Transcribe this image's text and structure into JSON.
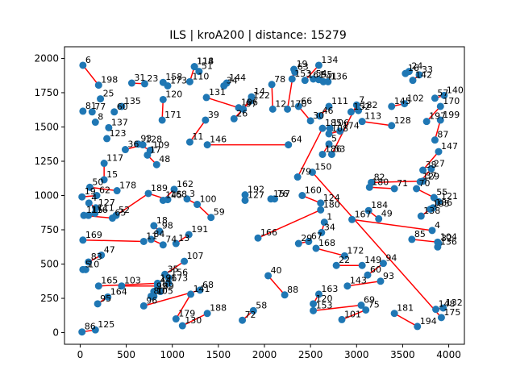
{
  "chart_data": {
    "type": "scatter",
    "title": "ILS | kroA200 | distance: 15279",
    "xlabel": "",
    "ylabel": "",
    "xlim": [
      -170,
      4170
    ],
    "ylim": [
      -85,
      2085
    ],
    "xticks": [
      0,
      500,
      1000,
      1500,
      2000,
      2500,
      3000,
      3500,
      4000
    ],
    "yticks": [
      0,
      250,
      500,
      750,
      1000,
      1250,
      1500,
      1750,
      2000
    ],
    "grid": false,
    "colors": {
      "points": "#1f77b4",
      "tour": "#ff0000"
    },
    "points": [
      {
        "label": "6",
        "x": 30,
        "y": 1950
      },
      {
        "label": "198",
        "x": 200,
        "y": 1805
      },
      {
        "label": "31",
        "x": 560,
        "y": 1820
      },
      {
        "label": "23",
        "x": 700,
        "y": 1815
      },
      {
        "label": "158",
        "x": 900,
        "y": 1825
      },
      {
        "label": "173",
        "x": 950,
        "y": 1800
      },
      {
        "label": "120",
        "x": 900,
        "y": 1700
      },
      {
        "label": "25",
        "x": 220,
        "y": 1705
      },
      {
        "label": "135",
        "x": 450,
        "y": 1650
      },
      {
        "label": "60",
        "x": 370,
        "y": 1610
      },
      {
        "label": "81",
        "x": 30,
        "y": 1615
      },
      {
        "label": "77",
        "x": 130,
        "y": 1610
      },
      {
        "label": "8",
        "x": 165,
        "y": 1535
      },
      {
        "label": "137",
        "x": 310,
        "y": 1495
      },
      {
        "label": "123",
        "x": 290,
        "y": 1415
      },
      {
        "label": "171",
        "x": 890,
        "y": 1550
      },
      {
        "label": "117",
        "x": 260,
        "y": 1235
      },
      {
        "label": "15",
        "x": 260,
        "y": 1115
      },
      {
        "label": "36",
        "x": 490,
        "y": 1335
      },
      {
        "label": "128",
        "x": 680,
        "y": 1370
      },
      {
        "label": "93",
        "x": 630,
        "y": 1375
      },
      {
        "label": "109",
        "x": 760,
        "y": 1330
      },
      {
        "label": "17",
        "x": 730,
        "y": 1295
      },
      {
        "label": "48",
        "x": 830,
        "y": 1225
      },
      {
        "label": "50",
        "x": 105,
        "y": 1060
      },
      {
        "label": "178",
        "x": 400,
        "y": 1035
      },
      {
        "label": "189",
        "x": 740,
        "y": 1015
      },
      {
        "label": "62",
        "x": 180,
        "y": 1000
      },
      {
        "label": "19",
        "x": 20,
        "y": 990
      },
      {
        "label": "4",
        "x": 95,
        "y": 945
      },
      {
        "label": "127",
        "x": 170,
        "y": 910
      },
      {
        "label": "111",
        "x": 160,
        "y": 870
      },
      {
        "label": "116",
        "x": 90,
        "y": 855
      },
      {
        "label": "115",
        "x": 40,
        "y": 855
      },
      {
        "label": "52",
        "x": 390,
        "y": 855
      },
      {
        "label": "65",
        "x": 350,
        "y": 835
      },
      {
        "label": "162",
        "x": 1020,
        "y": 1045
      },
      {
        "label": "145",
        "x": 900,
        "y": 965
      },
      {
        "label": "168",
        "x": 950,
        "y": 970
      },
      {
        "label": "3",
        "x": 1160,
        "y": 975
      },
      {
        "label": "100",
        "x": 1270,
        "y": 935
      },
      {
        "label": "59",
        "x": 1420,
        "y": 840
      },
      {
        "label": "18",
        "x": 800,
        "y": 780
      },
      {
        "label": "98",
        "x": 860,
        "y": 740
      },
      {
        "label": "169",
        "x": 30,
        "y": 675
      },
      {
        "label": "11",
        "x": 690,
        "y": 665
      },
      {
        "label": "84",
        "x": 770,
        "y": 680
      },
      {
        "label": "74",
        "x": 900,
        "y": 640
      },
      {
        "label": "191",
        "x": 1180,
        "y": 715
      },
      {
        "label": "13",
        "x": 1040,
        "y": 650
      },
      {
        "label": "47",
        "x": 230,
        "y": 565
      },
      {
        "label": "83",
        "x": 90,
        "y": 515
      },
      {
        "label": "10",
        "x": 60,
        "y": 460
      },
      {
        "label": "5",
        "x": 30,
        "y": 460
      },
      {
        "label": "107",
        "x": 1130,
        "y": 520
      },
      {
        "label": "35",
        "x": 920,
        "y": 425
      },
      {
        "label": "156",
        "x": 960,
        "y": 400
      },
      {
        "label": "173b",
        "display": "173",
        "x": 960,
        "y": 360
      },
      {
        "label": "196",
        "x": 840,
        "y": 360
      },
      {
        "label": "165",
        "x": 200,
        "y": 340
      },
      {
        "label": "103",
        "x": 450,
        "y": 340
      },
      {
        "label": "44",
        "x": 840,
        "y": 340
      },
      {
        "label": "99",
        "x": 800,
        "y": 300
      },
      {
        "label": "89",
        "x": 870,
        "y": 300
      },
      {
        "label": "80",
        "x": 770,
        "y": 265
      },
      {
        "label": "105",
        "x": 800,
        "y": 265
      },
      {
        "label": "164",
        "x": 300,
        "y": 260
      },
      {
        "label": "95",
        "x": 190,
        "y": 210
      },
      {
        "label": "96",
        "x": 690,
        "y": 195
      },
      {
        "label": "68",
        "x": 1300,
        "y": 310
      },
      {
        "label": "141",
        "x": 1200,
        "y": 280
      },
      {
        "label": "179",
        "x": 1040,
        "y": 100
      },
      {
        "label": "130",
        "x": 1110,
        "y": 50
      },
      {
        "label": "188",
        "x": 1380,
        "y": 140
      },
      {
        "label": "58",
        "x": 1880,
        "y": 160
      },
      {
        "label": "72",
        "x": 1760,
        "y": 90
      },
      {
        "label": "86",
        "x": 20,
        "y": 5
      },
      {
        "label": "125",
        "x": 165,
        "y": 20
      },
      {
        "label": "114",
        "x": 1240,
        "y": 1940
      },
      {
        "label": "118",
        "x": 1240,
        "y": 1940
      },
      {
        "label": "51",
        "x": 1290,
        "y": 1905
      },
      {
        "label": "110",
        "x": 1190,
        "y": 1830
      },
      {
        "label": "34",
        "x": 1560,
        "y": 1800
      },
      {
        "label": "144",
        "x": 1590,
        "y": 1820
      },
      {
        "label": "131",
        "x": 1370,
        "y": 1715
      },
      {
        "label": "196b",
        "display": "196",
        "x": 1720,
        "y": 1640
      },
      {
        "label": "97",
        "x": 1770,
        "y": 1630
      },
      {
        "label": "14",
        "x": 1860,
        "y": 1720
      },
      {
        "label": "122",
        "x": 1850,
        "y": 1690
      },
      {
        "label": "26",
        "x": 1670,
        "y": 1560
      },
      {
        "label": "39",
        "x": 1360,
        "y": 1550
      },
      {
        "label": "78",
        "x": 2080,
        "y": 1810
      },
      {
        "label": "12",
        "x": 2090,
        "y": 1630
      },
      {
        "label": "170",
        "x": 2250,
        "y": 1630
      },
      {
        "label": "19b",
        "display": "19",
        "x": 2320,
        "y": 1920
      },
      {
        "label": "63",
        "x": 2330,
        "y": 1900
      },
      {
        "label": "153",
        "x": 2300,
        "y": 1850
      },
      {
        "label": "161",
        "x": 2440,
        "y": 1840
      },
      {
        "label": "134",
        "x": 2590,
        "y": 1950
      },
      {
        "label": "54",
        "x": 2530,
        "y": 1850
      },
      {
        "label": "55",
        "x": 2590,
        "y": 1845
      },
      {
        "label": "41",
        "x": 2640,
        "y": 1830
      },
      {
        "label": "136",
        "x": 2690,
        "y": 1830
      },
      {
        "label": "66",
        "x": 2370,
        "y": 1650
      },
      {
        "label": "30",
        "x": 2500,
        "y": 1545
      },
      {
        "label": "46",
        "x": 2600,
        "y": 1580
      },
      {
        "label": "111b",
        "display": "111",
        "x": 2700,
        "y": 1650
      },
      {
        "label": "11b",
        "display": "11",
        "x": 1190,
        "y": 1390
      },
      {
        "label": "146",
        "x": 1380,
        "y": 1370
      },
      {
        "label": "64",
        "x": 2260,
        "y": 1370
      },
      {
        "label": "150",
        "x": 2520,
        "y": 1170
      },
      {
        "label": "79",
        "x": 2360,
        "y": 1135
      },
      {
        "label": "185",
        "x": 2630,
        "y": 1490
      },
      {
        "label": "106",
        "x": 2710,
        "y": 1490
      },
      {
        "label": "108",
        "x": 2700,
        "y": 1450
      },
      {
        "label": "174",
        "x": 2820,
        "y": 1470
      },
      {
        "label": "5b",
        "display": "5",
        "x": 2700,
        "y": 1375
      },
      {
        "label": "186",
        "x": 2630,
        "y": 1300
      },
      {
        "label": "53",
        "x": 2730,
        "y": 1300
      },
      {
        "label": "7",
        "x": 3000,
        "y": 1660
      },
      {
        "label": "182",
        "x": 3020,
        "y": 1620
      },
      {
        "label": "152",
        "x": 2940,
        "y": 1610
      },
      {
        "label": "113",
        "x": 3060,
        "y": 1540
      },
      {
        "label": "16",
        "x": 3530,
        "y": 1890
      },
      {
        "label": "24",
        "x": 3570,
        "y": 1905
      },
      {
        "label": "33",
        "x": 3680,
        "y": 1880
      },
      {
        "label": "142",
        "x": 3610,
        "y": 1840
      },
      {
        "label": "145b",
        "display": "145",
        "x": 3380,
        "y": 1650
      },
      {
        "label": "102",
        "x": 3520,
        "y": 1670
      },
      {
        "label": "57",
        "x": 3850,
        "y": 1710
      },
      {
        "label": "140",
        "x": 3950,
        "y": 1730
      },
      {
        "label": "170b",
        "display": "170",
        "x": 3910,
        "y": 1650
      },
      {
        "label": "128b",
        "display": "128",
        "x": 3380,
        "y": 1510
      },
      {
        "label": "197",
        "x": 3760,
        "y": 1540
      },
      {
        "label": "199",
        "x": 3910,
        "y": 1550
      },
      {
        "label": "87",
        "x": 3850,
        "y": 1405
      },
      {
        "label": "147",
        "x": 3890,
        "y": 1320
      },
      {
        "label": "38",
        "x": 3720,
        "y": 1185
      },
      {
        "label": "27",
        "x": 3810,
        "y": 1195
      },
      {
        "label": "129",
        "x": 3690,
        "y": 1100
      },
      {
        "label": "37",
        "x": 3720,
        "y": 1105
      },
      {
        "label": "82",
        "x": 3160,
        "y": 1095
      },
      {
        "label": "180b",
        "display": "180",
        "x": 3140,
        "y": 1060
      },
      {
        "label": "71",
        "x": 3410,
        "y": 1050
      },
      {
        "label": "70",
        "x": 3650,
        "y": 1050
      },
      {
        "label": "55b",
        "display": "55",
        "x": 3840,
        "y": 985
      },
      {
        "label": "121",
        "x": 3890,
        "y": 955
      },
      {
        "label": "186b",
        "display": "186",
        "x": 3830,
        "y": 910
      },
      {
        "label": "195",
        "x": 3800,
        "y": 900
      },
      {
        "label": "138",
        "x": 3700,
        "y": 850
      },
      {
        "label": "49",
        "x": 3240,
        "y": 830
      },
      {
        "label": "184",
        "x": 3130,
        "y": 890
      },
      {
        "label": "167",
        "x": 2950,
        "y": 825
      },
      {
        "label": "4b",
        "display": "4",
        "x": 3820,
        "y": 745
      },
      {
        "label": "85",
        "x": 3600,
        "y": 680
      },
      {
        "label": "104",
        "x": 3880,
        "y": 660
      },
      {
        "label": "32",
        "x": 3890,
        "y": 650
      },
      {
        "label": "136b",
        "display": "136",
        "x": 3880,
        "y": 625
      },
      {
        "label": "192",
        "x": 1790,
        "y": 1005
      },
      {
        "label": "127b",
        "display": "127",
        "x": 1790,
        "y": 965
      },
      {
        "label": "157",
        "x": 2070,
        "y": 975
      },
      {
        "label": "76",
        "x": 2110,
        "y": 975
      },
      {
        "label": "160",
        "x": 2410,
        "y": 1000
      },
      {
        "label": "124",
        "x": 2610,
        "y": 945
      },
      {
        "label": "180",
        "x": 2610,
        "y": 895
      },
      {
        "label": "166",
        "x": 1930,
        "y": 690
      },
      {
        "label": "1",
        "x": 2650,
        "y": 805
      },
      {
        "label": "34b",
        "display": "34",
        "x": 2620,
        "y": 730
      },
      {
        "label": "29",
        "x": 2370,
        "y": 650
      },
      {
        "label": "67",
        "x": 2480,
        "y": 665
      },
      {
        "label": "168b",
        "display": "168",
        "x": 2560,
        "y": 615
      },
      {
        "label": "172",
        "x": 2870,
        "y": 560
      },
      {
        "label": "22",
        "x": 2780,
        "y": 490
      },
      {
        "label": "149",
        "x": 3060,
        "y": 490
      },
      {
        "label": "94",
        "x": 3290,
        "y": 505
      },
      {
        "label": "60b",
        "display": "60",
        "x": 3120,
        "y": 420
      },
      {
        "label": "93b",
        "display": "93",
        "x": 3260,
        "y": 375
      },
      {
        "label": "143",
        "x": 2900,
        "y": 340
      },
      {
        "label": "40",
        "x": 2040,
        "y": 415
      },
      {
        "label": "88",
        "x": 2220,
        "y": 275
      },
      {
        "label": "163",
        "x": 2590,
        "y": 280
      },
      {
        "label": "120b",
        "display": "120",
        "x": 2530,
        "y": 210
      },
      {
        "label": "153b",
        "display": "153",
        "x": 2530,
        "y": 160
      },
      {
        "label": "69",
        "x": 3050,
        "y": 200
      },
      {
        "label": "75",
        "x": 3100,
        "y": 165
      },
      {
        "label": "101",
        "x": 2840,
        "y": 95
      },
      {
        "label": "181",
        "x": 3410,
        "y": 140
      },
      {
        "label": "194",
        "x": 3660,
        "y": 45
      },
      {
        "label": "148",
        "x": 3860,
        "y": 170
      },
      {
        "label": "132",
        "x": 3940,
        "y": 180
      },
      {
        "label": "175",
        "x": 3920,
        "y": 110
      }
    ],
    "tour": [
      [
        "6",
        "198"
      ],
      [
        "31",
        "23"
      ],
      [
        "158",
        "173"
      ],
      [
        "171",
        "120"
      ],
      [
        "36",
        "128"
      ],
      [
        "93",
        "109"
      ],
      [
        "17",
        "48"
      ],
      [
        "15",
        "117"
      ],
      [
        "50",
        "178"
      ],
      [
        "62",
        "19"
      ],
      [
        "4",
        "127"
      ],
      [
        "111",
        "116"
      ],
      [
        "115",
        "65"
      ],
      [
        "52",
        "189"
      ],
      [
        "189",
        "168"
      ],
      [
        "162",
        "145"
      ],
      [
        "3",
        "100"
      ],
      [
        "100",
        "59"
      ],
      [
        "18",
        "98"
      ],
      [
        "169",
        "11"
      ],
      [
        "84",
        "74"
      ],
      [
        "13",
        "191"
      ],
      [
        "47",
        "83"
      ],
      [
        "10",
        "5"
      ],
      [
        "107",
        "35"
      ],
      [
        "156",
        "173b"
      ],
      [
        "196",
        "165"
      ],
      [
        "103",
        "44"
      ],
      [
        "99",
        "89"
      ],
      [
        "80",
        "105"
      ],
      [
        "164",
        "95"
      ],
      [
        "96",
        "68"
      ],
      [
        "141",
        "179"
      ],
      [
        "130",
        "188"
      ],
      [
        "58",
        "72"
      ],
      [
        "86",
        "125"
      ],
      [
        "114",
        "110"
      ],
      [
        "118",
        "51"
      ],
      [
        "34",
        "144"
      ],
      [
        "131",
        "196b"
      ],
      [
        "97",
        "14"
      ],
      [
        "122",
        "26"
      ],
      [
        "39",
        "11b"
      ],
      [
        "146",
        "64"
      ],
      [
        "78",
        "12"
      ],
      [
        "170",
        "19b"
      ],
      [
        "63",
        "153"
      ],
      [
        "161",
        "134"
      ],
      [
        "54",
        "55"
      ],
      [
        "41",
        "136"
      ],
      [
        "66",
        "30"
      ],
      [
        "46",
        "111b"
      ],
      [
        "185",
        "106"
      ],
      [
        "108",
        "174"
      ],
      [
        "5b",
        "186"
      ],
      [
        "53",
        "7"
      ],
      [
        "182",
        "152"
      ],
      [
        "113",
        "128b"
      ],
      [
        "16",
        "24"
      ],
      [
        "33",
        "142"
      ],
      [
        "145b",
        "102"
      ],
      [
        "57",
        "140"
      ],
      [
        "170b",
        "197"
      ],
      [
        "199",
        "87"
      ],
      [
        "147",
        "38"
      ],
      [
        "27",
        "129"
      ],
      [
        "37",
        "82"
      ],
      [
        "180b",
        "71"
      ],
      [
        "70",
        "55b"
      ],
      [
        "121",
        "186b"
      ],
      [
        "195",
        "138"
      ],
      [
        "49",
        "184"
      ],
      [
        "167",
        "4b"
      ],
      [
        "85",
        "104"
      ],
      [
        "32",
        "136b"
      ],
      [
        "192",
        "127b"
      ],
      [
        "157",
        "76"
      ],
      [
        "160",
        "124"
      ],
      [
        "180",
        "166"
      ],
      [
        "1",
        "34b"
      ],
      [
        "29",
        "67"
      ],
      [
        "168b",
        "172"
      ],
      [
        "22",
        "149"
      ],
      [
        "94",
        "60b"
      ],
      [
        "93b",
        "143"
      ],
      [
        "40",
        "88"
      ],
      [
        "163",
        "120b"
      ],
      [
        "153b",
        "69"
      ],
      [
        "75",
        "101"
      ],
      [
        "181",
        "194"
      ],
      [
        "148",
        "132"
      ],
      [
        "175",
        "150"
      ],
      [
        "79",
        "185"
      ]
    ]
  }
}
